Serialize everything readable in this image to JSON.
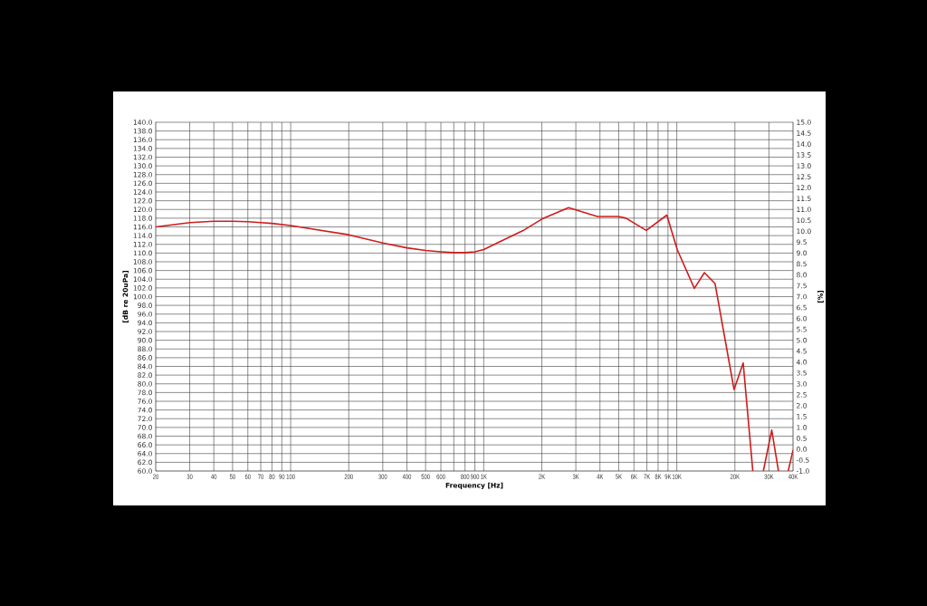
{
  "chart_data": {
    "type": "line",
    "xlabel": "Frequency  [Hz]",
    "ylabel": "[dB re 20uPa]",
    "y2label": "[%]",
    "log": "x",
    "grid": true,
    "xlim": [
      20,
      40000
    ],
    "ylim": [
      60,
      140
    ],
    "y2lim": [
      -1,
      15
    ],
    "xticks": [
      20,
      30,
      40,
      50,
      60,
      70,
      80,
      90,
      100,
      200,
      300,
      400,
      500,
      600,
      {
        "value": 700,
        "label": null
      },
      800,
      900,
      {
        "value": 1000,
        "label": "1K"
      },
      {
        "value": 2000,
        "label": "2K"
      },
      {
        "value": 3000,
        "label": "3K"
      },
      {
        "value": 4000,
        "label": "4K"
      },
      {
        "value": 5000,
        "label": "5K"
      },
      {
        "value": 6000,
        "label": "6K"
      },
      {
        "value": 7000,
        "label": "7K"
      },
      {
        "value": 8000,
        "label": "8K"
      },
      {
        "value": 9000,
        "label": "9K"
      },
      {
        "value": 10000,
        "label": "10K"
      },
      {
        "value": 20000,
        "label": "20K"
      },
      {
        "value": 30000,
        "label": "30K"
      },
      {
        "value": 40000,
        "label": "40K"
      }
    ],
    "yticks": [
      {
        "value": 60,
        "label": "60.0"
      },
      {
        "value": 62,
        "label": "62.0"
      },
      {
        "value": 64,
        "label": "64.0"
      },
      {
        "value": 66,
        "label": "66.0"
      },
      {
        "value": 68,
        "label": "68.0"
      },
      {
        "value": 70,
        "label": "70.0"
      },
      {
        "value": 72,
        "label": "72.0"
      },
      {
        "value": 74,
        "label": "74.0"
      },
      {
        "value": 76,
        "label": "76.0"
      },
      {
        "value": 78,
        "label": "78.0"
      },
      {
        "value": 80,
        "label": "80.0"
      },
      {
        "value": 82,
        "label": "82.0"
      },
      {
        "value": 84,
        "label": "84.0"
      },
      {
        "value": 86,
        "label": "86.0"
      },
      {
        "value": 88,
        "label": "88.0"
      },
      {
        "value": 90,
        "label": "90.0"
      },
      {
        "value": 92,
        "label": "92.0"
      },
      {
        "value": 94,
        "label": "94.0"
      },
      {
        "value": 96,
        "label": "96.0"
      },
      {
        "value": 98,
        "label": "98.0"
      },
      {
        "value": 100,
        "label": "100.0"
      },
      {
        "value": 102,
        "label": "102.0"
      },
      {
        "value": 104,
        "label": "104.0"
      },
      {
        "value": 106,
        "label": "106.0"
      },
      {
        "value": 108,
        "label": "108.0"
      },
      {
        "value": 110,
        "label": "110.0"
      },
      {
        "value": 112,
        "label": "112.0"
      },
      {
        "value": 114,
        "label": "114.0"
      },
      {
        "value": 116,
        "label": "116.0"
      },
      {
        "value": 118,
        "label": "118.0"
      },
      {
        "value": 120,
        "label": "120.0"
      },
      {
        "value": 122,
        "label": "122.0"
      },
      {
        "value": 124,
        "label": "124.0"
      },
      {
        "value": 126,
        "label": "126.0"
      },
      {
        "value": 128,
        "label": "128.0"
      },
      {
        "value": 130,
        "label": "130.0"
      },
      {
        "value": 132,
        "label": "132.0"
      },
      {
        "value": 134,
        "label": "134.0"
      },
      {
        "value": 136,
        "label": "136.0"
      },
      {
        "value": 138,
        "label": "138.0"
      },
      {
        "value": 140,
        "label": "140.0"
      }
    ],
    "y2ticks": [
      {
        "value": -1,
        "label": "-1.0"
      },
      {
        "value": -0.5,
        "label": "-0.5"
      },
      {
        "value": 0,
        "label": "0.0"
      },
      0.5,
      {
        "value": 1,
        "label": "1.0"
      },
      1.5,
      {
        "value": 2,
        "label": "2.0"
      },
      2.5,
      {
        "value": 3,
        "label": "3.0"
      },
      3.5,
      {
        "value": 4,
        "label": "4.0"
      },
      4.5,
      {
        "value": 5,
        "label": "5.0"
      },
      5.5,
      {
        "value": 6,
        "label": "6.0"
      },
      6.5,
      {
        "value": 7,
        "label": "7.0"
      },
      7.5,
      {
        "value": 8,
        "label": "8.0"
      },
      8.5,
      {
        "value": 9,
        "label": "9.0"
      },
      9.5,
      {
        "value": 10,
        "label": "10.0"
      },
      10.5,
      {
        "value": 11,
        "label": "11.0"
      },
      11.5,
      {
        "value": 12,
        "label": "12.0"
      },
      12.5,
      {
        "value": 13,
        "label": "13.0"
      },
      13.5,
      {
        "value": 14,
        "label": "14.0"
      },
      14.5,
      {
        "value": 15,
        "label": "15.0"
      }
    ],
    "series": [
      {
        "color": "#d01c1c",
        "x": [
          20,
          30,
          40,
          50,
          60,
          70,
          80,
          100,
          200,
          300,
          400,
          500,
          600,
          700,
          800,
          900,
          1000,
          1200,
          1590,
          2000,
          2750,
          3880,
          4980,
          5460,
          6950,
          8880,
          10070,
          12330,
          13900,
          15780,
          19800,
          22070,
          24760,
          26400,
          28070,
          31040,
          33620,
          35700,
          37760,
          40000
        ],
        "values": [
          116.0,
          117.0,
          117.3,
          117.3,
          117.2,
          117.0,
          116.8,
          116.3,
          114.2,
          112.3,
          111.2,
          110.6,
          110.3,
          110.1,
          110.1,
          110.3,
          110.8,
          112.5,
          115.1,
          117.8,
          120.4,
          118.4,
          118.4,
          118.0,
          115.2,
          118.7,
          110.7,
          101.9,
          105.5,
          103.0,
          78.7,
          84.8,
          60,
          null,
          60,
          69.4,
          60,
          null,
          60,
          64.8
        ]
      }
    ]
  }
}
